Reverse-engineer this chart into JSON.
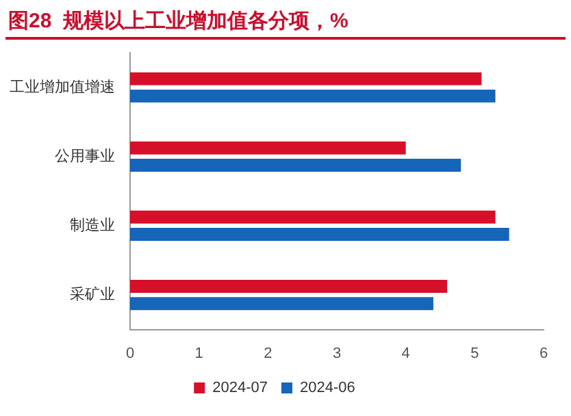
{
  "chart_data": {
    "type": "bar",
    "title": "图28  规模以上工业增加值各分项，%",
    "orientation": "horizontal",
    "categories": [
      "工业增加值增速",
      "公用事业",
      "制造业",
      "采矿业"
    ],
    "series": [
      {
        "name": "2024-07",
        "color": "#d7102a",
        "values": [
          5.1,
          4.0,
          5.3,
          4.6
        ]
      },
      {
        "name": "2024-06",
        "color": "#1565b8",
        "values": [
          5.3,
          4.8,
          5.5,
          4.4
        ]
      }
    ],
    "xlim": [
      0,
      6
    ],
    "xticks": [
      0,
      1,
      2,
      3,
      4,
      5,
      6
    ],
    "grid": false,
    "legend": "bottom"
  }
}
